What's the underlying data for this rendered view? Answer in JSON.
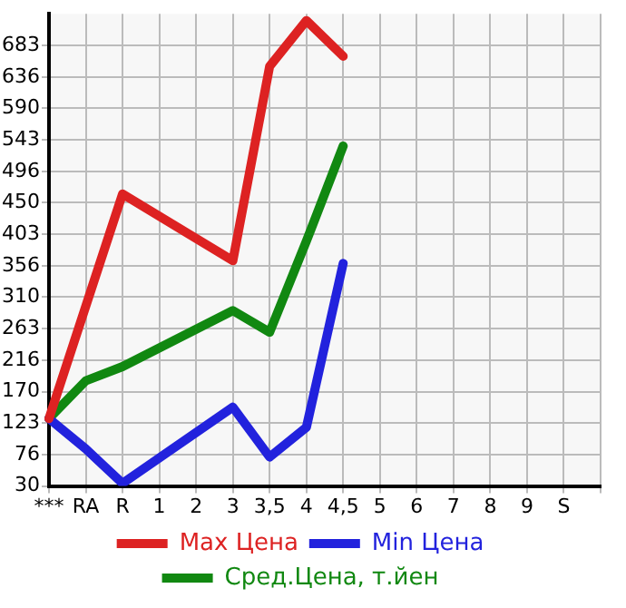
{
  "chart_data": {
    "type": "line",
    "categories": [
      "***",
      "RA",
      "R",
      "1",
      "2",
      "3",
      "3,5",
      "4",
      "4,5",
      "5",
      "6",
      "7",
      "8",
      "9",
      "S",
      null
    ],
    "series": [
      {
        "name": "Max Цена",
        "color": "#dd2222",
        "values": [
          130,
          null,
          463,
          null,
          null,
          364,
          652,
          720,
          667,
          null,
          null,
          null,
          null,
          null,
          null,
          null
        ]
      },
      {
        "name": "Min Цена",
        "color": "#2222dd",
        "values": [
          130,
          85,
          34,
          null,
          null,
          147,
          73,
          117,
          360,
          null,
          null,
          null,
          null,
          null,
          null,
          null
        ]
      },
      {
        "name": "Сред.Цена, т.йен",
        "color": "#118811",
        "values": [
          130,
          186,
          207,
          null,
          null,
          290,
          258,
          393,
          534,
          null,
          null,
          null,
          null,
          null,
          null,
          null
        ]
      }
    ],
    "ylim": [
      30,
      730
    ],
    "yticks": [
      30,
      76,
      123,
      170,
      216,
      263,
      310,
      356,
      403,
      450,
      496,
      543,
      590,
      636,
      683
    ],
    "grid": true,
    "legend": "bottom",
    "marker": "none",
    "line_style": "solid"
  }
}
